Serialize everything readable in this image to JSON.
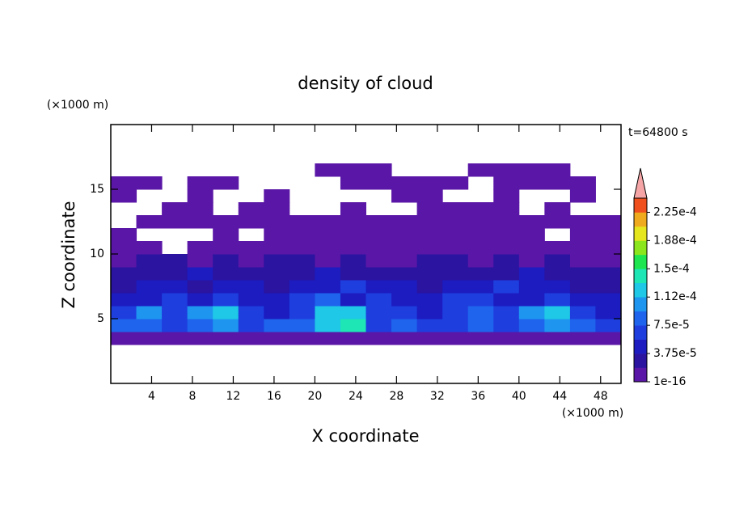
{
  "chart_data": {
    "type": "heatmap",
    "title": "density of cloud",
    "x_label": "X coordinate",
    "y_label": "Z coordinate",
    "x_unit": "(×1000 m)",
    "y_unit": "(×1000 m)",
    "time_label": "t=64800 s",
    "xlim": [
      0,
      50
    ],
    "ylim": [
      0,
      20
    ],
    "xticks": [
      4,
      8,
      12,
      16,
      20,
      24,
      28,
      32,
      36,
      40,
      44,
      48
    ],
    "yticks": [
      5,
      10,
      15
    ],
    "x_edges": [
      0,
      2.5,
      5,
      7.5,
      10,
      12.5,
      15,
      17.5,
      20,
      22.5,
      25,
      27.5,
      30,
      32.5,
      35,
      37.5,
      40,
      42.5,
      45,
      47.5,
      50
    ],
    "z_edges": [
      3,
      4,
      5,
      6,
      7,
      8,
      9,
      10,
      11,
      12,
      13,
      14,
      15,
      16,
      17
    ],
    "values": [
      [
        1e-05,
        1e-05,
        1e-05,
        1e-05,
        1e-05,
        1e-05,
        1e-05,
        1e-05,
        1e-05,
        1e-05,
        1e-05,
        1e-05,
        1e-05,
        1e-05,
        1e-05,
        1e-05,
        1e-05,
        1e-05,
        1e-05,
        1e-05
      ],
      [
        8e-05,
        8e-05,
        6e-05,
        8e-05,
        0.0001,
        6e-05,
        8e-05,
        8e-05,
        0.00012,
        0.00014,
        6e-05,
        8e-05,
        6e-05,
        6e-05,
        8e-05,
        6e-05,
        8e-05,
        0.0001,
        8e-05,
        6e-05
      ],
      [
        6e-05,
        0.0001,
        6e-05,
        0.0001,
        0.00012,
        6e-05,
        4.5e-05,
        6e-05,
        0.00012,
        0.00012,
        6e-05,
        6e-05,
        4.5e-05,
        6e-05,
        8e-05,
        6e-05,
        0.0001,
        0.00012,
        6e-05,
        4.5e-05
      ],
      [
        4.5e-05,
        4.5e-05,
        6e-05,
        4.5e-05,
        6e-05,
        4.5e-05,
        4.5e-05,
        6e-05,
        8e-05,
        4.5e-05,
        6e-05,
        4.5e-05,
        4.5e-05,
        6e-05,
        6e-05,
        4.5e-05,
        4.5e-05,
        6e-05,
        4.5e-05,
        4.5e-05
      ],
      [
        2.5e-05,
        4.5e-05,
        4.5e-05,
        2.5e-05,
        4.5e-05,
        4.5e-05,
        2.5e-05,
        4.5e-05,
        4.5e-05,
        6e-05,
        4.5e-05,
        4.5e-05,
        2.5e-05,
        4.5e-05,
        4.5e-05,
        6e-05,
        4.5e-05,
        4.5e-05,
        2.5e-05,
        2.5e-05
      ],
      [
        2.5e-05,
        2.5e-05,
        2.5e-05,
        4.5e-05,
        2.5e-05,
        2.5e-05,
        2.5e-05,
        2.5e-05,
        4.5e-05,
        2.5e-05,
        2.5e-05,
        2.5e-05,
        2.5e-05,
        2.5e-05,
        2.5e-05,
        2.5e-05,
        4.5e-05,
        2.5e-05,
        2.5e-05,
        2.5e-05
      ],
      [
        1e-05,
        2.5e-05,
        2.5e-05,
        1e-05,
        2.5e-05,
        1e-05,
        2.5e-05,
        2.5e-05,
        1e-05,
        2.5e-05,
        1e-05,
        1e-05,
        2.5e-05,
        2.5e-05,
        1e-05,
        2.5e-05,
        1e-05,
        2.5e-05,
        1e-05,
        1e-05
      ],
      [
        1e-05,
        1e-05,
        null,
        1e-05,
        1e-05,
        1e-05,
        1e-05,
        1e-05,
        1e-05,
        1e-05,
        1e-05,
        1e-05,
        1e-05,
        1e-05,
        1e-05,
        1e-05,
        1e-05,
        1e-05,
        1e-05,
        1e-05
      ],
      [
        1e-05,
        null,
        null,
        null,
        1e-05,
        null,
        1e-05,
        1e-05,
        1e-05,
        1e-05,
        1e-05,
        1e-05,
        1e-05,
        1e-05,
        1e-05,
        1e-05,
        1e-05,
        null,
        1e-05,
        1e-05
      ],
      [
        null,
        1e-05,
        1e-05,
        1e-05,
        1e-05,
        1e-05,
        1e-05,
        1e-05,
        1e-05,
        1e-05,
        1e-05,
        1e-05,
        1e-05,
        1e-05,
        1e-05,
        1e-05,
        1e-05,
        1e-05,
        1e-05,
        1e-05
      ],
      [
        null,
        null,
        1e-05,
        1e-05,
        null,
        1e-05,
        1e-05,
        null,
        null,
        1e-05,
        null,
        null,
        1e-05,
        1e-05,
        1e-05,
        1e-05,
        null,
        1e-05,
        null,
        null
      ],
      [
        1e-05,
        null,
        null,
        1e-05,
        null,
        null,
        1e-05,
        null,
        null,
        null,
        null,
        1e-05,
        1e-05,
        null,
        null,
        1e-05,
        null,
        null,
        1e-05,
        null
      ],
      [
        1e-05,
        1e-05,
        null,
        1e-05,
        1e-05,
        null,
        null,
        null,
        null,
        1e-05,
        1e-05,
        1e-05,
        1e-05,
        1e-05,
        null,
        1e-05,
        1e-05,
        1e-05,
        1e-05,
        null
      ],
      [
        null,
        null,
        null,
        null,
        null,
        null,
        null,
        null,
        1e-05,
        1e-05,
        1e-05,
        null,
        null,
        null,
        1e-05,
        1e-05,
        1e-05,
        1e-05,
        null,
        null
      ]
    ],
    "levels": [
      {
        "value": 1e-16,
        "label": "1e-16"
      },
      1.875e-05,
      {
        "value": 3.75e-05,
        "label": "3.75e-5"
      },
      5.625e-05,
      {
        "value": 7.5e-05,
        "label": "7.5e-5"
      },
      9.375e-05,
      {
        "value": 0.0001125,
        "label": "1.12e-4"
      },
      0.00013125,
      {
        "value": 0.00015,
        "label": "1.5e-4"
      },
      0.00016875,
      {
        "value": 0.0001875,
        "label": "1.88e-4"
      },
      0.00020625,
      {
        "value": 0.000225,
        "label": "2.25e-4"
      },
      0.00024375
    ],
    "colors": [
      "#5a16a6",
      "#2a14a0",
      "#1c1cc0",
      "#1e3ede",
      "#1e64ec",
      "#1e96f0",
      "#1ec8e6",
      "#1ee6b4",
      "#1ee650",
      "#8ce61e",
      "#e6e61e",
      "#f0aa1e",
      "#f0501e"
    ],
    "over_color": "#f5a5a5"
  }
}
